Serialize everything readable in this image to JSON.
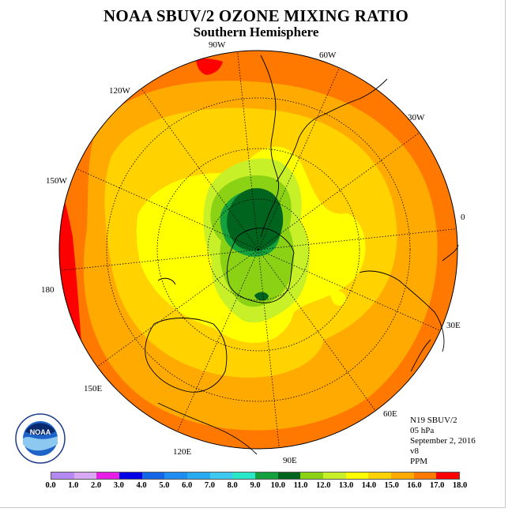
{
  "title": "NOAA SBUV/2 OZONE MIXING RATIO",
  "subtitle": "Southern Hemisphere",
  "longitude_labels": [
    "90W",
    "60W",
    "30W",
    "0",
    "30E",
    "60E",
    "90E",
    "120E",
    "150E",
    "180",
    "150W",
    "120W"
  ],
  "info": {
    "satellite": "N19 SBUV/2",
    "level": "05 hPa",
    "date": "September 2, 2016",
    "version": "v8",
    "units": "PPM"
  },
  "logo": {
    "text": "NOAA",
    "ring_text": "NATIONAL OCEANIC AND ATMOSPHERIC ADMINISTRATION · U.S. DEPARTMENT OF COMMERCE"
  },
  "colorbar": {
    "ticks": [
      "0.0",
      "1.0",
      "2.0",
      "3.0",
      "4.0",
      "5.0",
      "6.0",
      "7.0",
      "8.0",
      "9.0",
      "10.0",
      "11.0",
      "12.0",
      "13.0",
      "14.0",
      "15.0",
      "16.0",
      "17.0",
      "18.0"
    ],
    "colors": [
      "#b388f0",
      "#d9a8f2",
      "#e61ee6",
      "#0000e6",
      "#1466e6",
      "#1e8cf0",
      "#28aaf0",
      "#3cc8f0",
      "#28e6c8",
      "#14a03c",
      "#00641e",
      "#8cd214",
      "#c8f028",
      "#ffff00",
      "#ffd200",
      "#ffaa00",
      "#ff7800",
      "#ff0000",
      "#8c5028"
    ]
  },
  "chart_data": {
    "type": "polar_contour_map",
    "variable": "Ozone mixing ratio",
    "units": "PPM",
    "pressure_level": "05 hPa",
    "hemisphere": "Southern Hemisphere",
    "date": "September 2, 2016",
    "levels": [
      0,
      1,
      2,
      3,
      4,
      5,
      6,
      7,
      8,
      9,
      10,
      11,
      12,
      13,
      14,
      15,
      16,
      17,
      18
    ],
    "minimum_region": {
      "value_range": [
        9,
        10
      ],
      "location": "near South Pole / Antarctic Peninsula"
    },
    "outer_region": {
      "value_range": [
        15,
        17
      ],
      "location": "equatorward edge"
    }
  }
}
